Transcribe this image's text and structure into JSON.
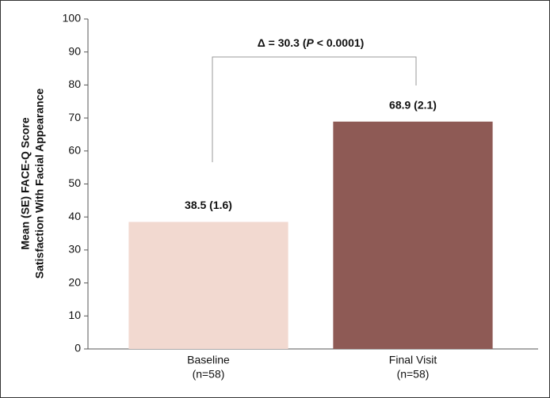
{
  "chart_data": {
    "type": "bar",
    "y_axis_label": [
      "Mean (SE) FACE-Q Score",
      "Satisfaction With Facial Appearance"
    ],
    "categories": [
      "Baseline",
      "Final Visit"
    ],
    "category_sublabels": [
      "(n=58)",
      "(n=58)"
    ],
    "values": [
      38.5,
      68.9
    ],
    "value_labels": [
      "38.5 (1.6)",
      "68.9 (2.1)"
    ],
    "colors": [
      "#f2d9d0",
      "#8e5a55"
    ],
    "annotation": [
      "Δ = 30.3 (",
      "P",
      " < 0.0001)"
    ],
    "ylim": [
      0,
      100
    ],
    "yticks": [
      0,
      10,
      20,
      30,
      40,
      50,
      60,
      70,
      80,
      90,
      100
    ],
    "grid": false
  }
}
